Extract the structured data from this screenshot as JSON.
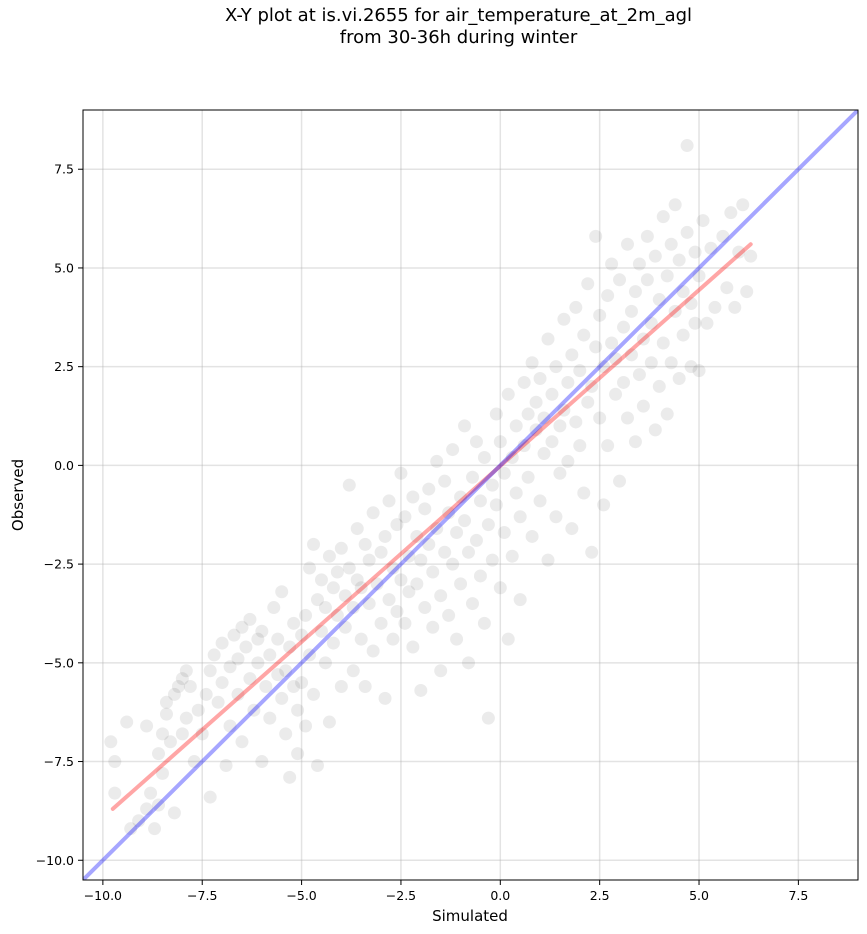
{
  "title_line1": "X-Y plot at is.vi.2655 for air_temperature_at_2m_agl",
  "title_line2": "from 30-36h during winter",
  "chart_data": {
    "type": "scatter",
    "title": "X-Y plot at is.vi.2655 for air_temperature_at_2m_agl\nfrom 30-36h during winter",
    "xlabel": "Simulated",
    "ylabel": "Observed",
    "xlim": [
      -10.5,
      9.0
    ],
    "ylim": [
      -10.5,
      9.0
    ],
    "xticks": [
      -10.0,
      -7.5,
      -5.0,
      -2.5,
      0.0,
      2.5,
      5.0,
      7.5
    ],
    "xtick_labels": [
      "−10.0",
      "−7.5",
      "−5.0",
      "−2.5",
      "0.0",
      "2.5",
      "5.0",
      "7.5"
    ],
    "yticks": [
      -10.0,
      -7.5,
      -5.0,
      -2.5,
      0.0,
      2.5,
      5.0,
      7.5
    ],
    "ytick_labels": [
      "−10.0",
      "−7.5",
      "−5.0",
      "−2.5",
      "0.0",
      "2.5",
      "5.0",
      "7.5"
    ],
    "grid": true,
    "point_color": "#000000",
    "point_alpha": 0.08,
    "points": [
      [
        -9.8,
        -7.0
      ],
      [
        -9.7,
        -7.5
      ],
      [
        -9.7,
        -8.3
      ],
      [
        -9.4,
        -6.5
      ],
      [
        -9.3,
        -9.2
      ],
      [
        -9.1,
        -9.0
      ],
      [
        -8.9,
        -6.6
      ],
      [
        -8.9,
        -8.7
      ],
      [
        -8.8,
        -8.3
      ],
      [
        -8.7,
        -9.2
      ],
      [
        -8.6,
        -8.6
      ],
      [
        -8.6,
        -7.3
      ],
      [
        -8.5,
        -7.8
      ],
      [
        -8.5,
        -6.8
      ],
      [
        -8.4,
        -6.3
      ],
      [
        -8.4,
        -6.0
      ],
      [
        -8.3,
        -7.0
      ],
      [
        -8.2,
        -8.8
      ],
      [
        -8.2,
        -5.8
      ],
      [
        -8.1,
        -5.6
      ],
      [
        -8.0,
        -5.4
      ],
      [
        -8.0,
        -6.8
      ],
      [
        -7.9,
        -5.2
      ],
      [
        -7.9,
        -6.4
      ],
      [
        -7.8,
        -5.6
      ],
      [
        -7.7,
        -7.5
      ],
      [
        -7.6,
        -6.2
      ],
      [
        -7.5,
        -6.8
      ],
      [
        -7.4,
        -5.8
      ],
      [
        -7.3,
        -8.4
      ],
      [
        -7.3,
        -5.2
      ],
      [
        -7.2,
        -4.8
      ],
      [
        -7.1,
        -6.0
      ],
      [
        -7.0,
        -5.5
      ],
      [
        -7.0,
        -4.5
      ],
      [
        -6.9,
        -7.6
      ],
      [
        -6.8,
        -5.1
      ],
      [
        -6.8,
        -6.6
      ],
      [
        -6.7,
        -4.3
      ],
      [
        -6.6,
        -4.9
      ],
      [
        -6.6,
        -5.8
      ],
      [
        -6.5,
        -4.1
      ],
      [
        -6.5,
        -7.0
      ],
      [
        -6.4,
        -4.6
      ],
      [
        -6.3,
        -5.4
      ],
      [
        -6.3,
        -3.9
      ],
      [
        -6.2,
        -6.2
      ],
      [
        -6.1,
        -4.4
      ],
      [
        -6.1,
        -5.0
      ],
      [
        -6.0,
        -7.5
      ],
      [
        -6.0,
        -4.2
      ],
      [
        -5.9,
        -5.6
      ],
      [
        -5.8,
        -4.8
      ],
      [
        -5.8,
        -6.4
      ],
      [
        -5.7,
        -3.6
      ],
      [
        -5.6,
        -5.3
      ],
      [
        -5.6,
        -4.4
      ],
      [
        -5.5,
        -5.9
      ],
      [
        -5.5,
        -3.2
      ],
      [
        -5.4,
        -5.2
      ],
      [
        -5.4,
        -6.8
      ],
      [
        -5.3,
        -4.6
      ],
      [
        -5.3,
        -7.9
      ],
      [
        -5.2,
        -5.6
      ],
      [
        -5.2,
        -4.0
      ],
      [
        -5.1,
        -6.2
      ],
      [
        -5.1,
        -7.3
      ],
      [
        -5.0,
        -4.3
      ],
      [
        -5.0,
        -5.5
      ],
      [
        -4.9,
        -3.8
      ],
      [
        -4.9,
        -6.6
      ],
      [
        -4.8,
        -2.6
      ],
      [
        -4.8,
        -4.8
      ],
      [
        -4.7,
        -2.0
      ],
      [
        -4.7,
        -5.8
      ],
      [
        -4.6,
        -3.4
      ],
      [
        -4.6,
        -7.6
      ],
      [
        -4.5,
        -4.2
      ],
      [
        -4.5,
        -2.9
      ],
      [
        -4.4,
        -5.0
      ],
      [
        -4.4,
        -3.6
      ],
      [
        -4.3,
        -2.3
      ],
      [
        -4.3,
        -6.5
      ],
      [
        -4.2,
        -3.1
      ],
      [
        -4.2,
        -4.5
      ],
      [
        -4.1,
        -2.7
      ],
      [
        -4.1,
        -3.8
      ],
      [
        -4.0,
        -5.6
      ],
      [
        -4.0,
        -2.1
      ],
      [
        -3.9,
        -3.3
      ],
      [
        -3.9,
        -4.1
      ],
      [
        -3.8,
        -0.5
      ],
      [
        -3.8,
        -2.6
      ],
      [
        -3.7,
        -3.6
      ],
      [
        -3.7,
        -5.2
      ],
      [
        -3.6,
        -1.6
      ],
      [
        -3.6,
        -2.9
      ],
      [
        -3.5,
        -4.4
      ],
      [
        -3.5,
        -3.1
      ],
      [
        -3.4,
        -2.0
      ],
      [
        -3.4,
        -5.6
      ],
      [
        -3.3,
        -3.5
      ],
      [
        -3.3,
        -2.4
      ],
      [
        -3.2,
        -4.7
      ],
      [
        -3.2,
        -1.2
      ],
      [
        -3.1,
        -3.0
      ],
      [
        -3.0,
        -4.0
      ],
      [
        -3.0,
        -2.2
      ],
      [
        -2.9,
        -5.9
      ],
      [
        -2.9,
        -1.8
      ],
      [
        -2.8,
        -3.4
      ],
      [
        -2.8,
        -0.9
      ],
      [
        -2.7,
        -2.6
      ],
      [
        -2.7,
        -4.4
      ],
      [
        -2.6,
        -1.5
      ],
      [
        -2.6,
        -3.7
      ],
      [
        -2.5,
        -0.2
      ],
      [
        -2.5,
        -2.9
      ],
      [
        -2.4,
        -4.0
      ],
      [
        -2.4,
        -1.3
      ],
      [
        -2.3,
        -2.3
      ],
      [
        -2.3,
        -3.2
      ],
      [
        -2.2,
        -0.8
      ],
      [
        -2.2,
        -4.6
      ],
      [
        -2.1,
        -1.8
      ],
      [
        -2.1,
        -3.0
      ],
      [
        -2.0,
        -5.7
      ],
      [
        -2.0,
        -2.4
      ],
      [
        -1.9,
        -1.1
      ],
      [
        -1.9,
        -3.6
      ],
      [
        -1.8,
        -0.6
      ],
      [
        -1.8,
        -2.0
      ],
      [
        -1.7,
        -4.1
      ],
      [
        -1.7,
        -2.7
      ],
      [
        -1.6,
        0.1
      ],
      [
        -1.6,
        -1.6
      ],
      [
        -1.5,
        -3.3
      ],
      [
        -1.5,
        -5.2
      ],
      [
        -1.4,
        -2.2
      ],
      [
        -1.4,
        -0.4
      ],
      [
        -1.3,
        -1.2
      ],
      [
        -1.3,
        -3.8
      ],
      [
        -1.2,
        0.4
      ],
      [
        -1.2,
        -2.5
      ],
      [
        -1.1,
        -1.7
      ],
      [
        -1.1,
        -4.4
      ],
      [
        -1.0,
        -0.8
      ],
      [
        -1.0,
        -3.0
      ],
      [
        -0.9,
        1.0
      ],
      [
        -0.9,
        -1.4
      ],
      [
        -0.8,
        -2.2
      ],
      [
        -0.8,
        -5.0
      ],
      [
        -0.7,
        -0.3
      ],
      [
        -0.7,
        -3.5
      ],
      [
        -0.6,
        0.6
      ],
      [
        -0.6,
        -1.9
      ],
      [
        -0.5,
        -2.8
      ],
      [
        -0.5,
        -0.9
      ],
      [
        -0.4,
        -4.0
      ],
      [
        -0.4,
        0.2
      ],
      [
        -0.3,
        -1.5
      ],
      [
        -0.3,
        -6.4
      ],
      [
        -0.2,
        -0.5
      ],
      [
        -0.2,
        -2.4
      ],
      [
        -0.1,
        1.3
      ],
      [
        -0.1,
        -1.0
      ],
      [
        0.0,
        -3.1
      ],
      [
        0.0,
        0.6
      ],
      [
        0.1,
        -0.2
      ],
      [
        0.1,
        -1.7
      ],
      [
        0.2,
        -4.4
      ],
      [
        0.2,
        1.8
      ],
      [
        0.3,
        0.2
      ],
      [
        0.3,
        -2.3
      ],
      [
        0.4,
        1.0
      ],
      [
        0.4,
        -0.7
      ],
      [
        0.5,
        -1.3
      ],
      [
        0.5,
        -3.4
      ],
      [
        0.6,
        2.1
      ],
      [
        0.6,
        0.5
      ],
      [
        0.7,
        1.3
      ],
      [
        0.7,
        -0.3
      ],
      [
        0.8,
        -1.8
      ],
      [
        0.8,
        2.6
      ],
      [
        0.9,
        0.9
      ],
      [
        0.9,
        1.6
      ],
      [
        1.0,
        -0.9
      ],
      [
        1.0,
        2.2
      ],
      [
        1.1,
        0.3
      ],
      [
        1.1,
        1.2
      ],
      [
        1.2,
        -2.4
      ],
      [
        1.2,
        3.2
      ],
      [
        1.3,
        1.8
      ],
      [
        1.3,
        0.6
      ],
      [
        1.4,
        -1.3
      ],
      [
        1.4,
        2.5
      ],
      [
        1.5,
        1.0
      ],
      [
        1.5,
        -0.2
      ],
      [
        1.6,
        3.7
      ],
      [
        1.6,
        1.4
      ],
      [
        1.7,
        0.1
      ],
      [
        1.7,
        2.1
      ],
      [
        1.8,
        -1.6
      ],
      [
        1.8,
        2.8
      ],
      [
        1.9,
        1.1
      ],
      [
        1.9,
        4.0
      ],
      [
        2.0,
        0.5
      ],
      [
        2.0,
        2.4
      ],
      [
        2.1,
        -0.7
      ],
      [
        2.1,
        3.3
      ],
      [
        2.2,
        1.6
      ],
      [
        2.2,
        4.6
      ],
      [
        2.3,
        2.0
      ],
      [
        2.3,
        -2.2
      ],
      [
        2.4,
        5.8
      ],
      [
        2.4,
        3.0
      ],
      [
        2.5,
        1.2
      ],
      [
        2.5,
        3.8
      ],
      [
        2.6,
        -1.0
      ],
      [
        2.6,
        2.5
      ],
      [
        2.7,
        4.3
      ],
      [
        2.7,
        0.5
      ],
      [
        2.8,
        3.1
      ],
      [
        2.8,
        5.1
      ],
      [
        2.9,
        1.8
      ],
      [
        2.9,
        2.7
      ],
      [
        3.0,
        4.7
      ],
      [
        3.0,
        -0.4
      ],
      [
        3.1,
        3.5
      ],
      [
        3.1,
        2.1
      ],
      [
        3.2,
        5.6
      ],
      [
        3.2,
        1.2
      ],
      [
        3.3,
        3.9
      ],
      [
        3.3,
        2.8
      ],
      [
        3.4,
        4.4
      ],
      [
        3.4,
        0.6
      ],
      [
        3.5,
        5.1
      ],
      [
        3.5,
        2.3
      ],
      [
        3.6,
        3.2
      ],
      [
        3.6,
        1.5
      ],
      [
        3.7,
        4.7
      ],
      [
        3.7,
        5.8
      ],
      [
        3.8,
        2.6
      ],
      [
        3.8,
        3.6
      ],
      [
        3.9,
        0.9
      ],
      [
        3.9,
        5.3
      ],
      [
        4.0,
        4.2
      ],
      [
        4.0,
        2.0
      ],
      [
        4.1,
        6.3
      ],
      [
        4.1,
        3.1
      ],
      [
        4.2,
        1.3
      ],
      [
        4.2,
        4.8
      ],
      [
        4.3,
        5.6
      ],
      [
        4.3,
        2.6
      ],
      [
        4.4,
        3.9
      ],
      [
        4.4,
        6.6
      ],
      [
        4.5,
        2.2
      ],
      [
        4.5,
        5.2
      ],
      [
        4.6,
        4.4
      ],
      [
        4.6,
        3.3
      ],
      [
        4.7,
        8.1
      ],
      [
        4.7,
        5.9
      ],
      [
        4.8,
        4.1
      ],
      [
        4.8,
        2.5
      ],
      [
        4.9,
        5.4
      ],
      [
        4.9,
        3.6
      ],
      [
        5.0,
        4.8
      ],
      [
        5.0,
        2.4
      ],
      [
        5.1,
        6.2
      ],
      [
        5.2,
        3.6
      ],
      [
        5.3,
        5.5
      ],
      [
        5.4,
        4.0
      ],
      [
        5.6,
        5.8
      ],
      [
        5.7,
        4.5
      ],
      [
        5.8,
        6.4
      ],
      [
        5.9,
        4.0
      ],
      [
        6.0,
        5.4
      ],
      [
        6.1,
        6.6
      ],
      [
        6.2,
        4.4
      ],
      [
        6.3,
        5.3
      ]
    ],
    "series": [
      {
        "color": "#ff0000",
        "alpha": 0.35,
        "x": [
          -9.75,
          6.3
        ],
        "y": [
          -8.7,
          5.6
        ]
      },
      {
        "color": "#0000ff",
        "alpha": 0.35,
        "x": [
          -10.5,
          9.0
        ],
        "y": [
          -10.5,
          9.0
        ]
      }
    ]
  }
}
